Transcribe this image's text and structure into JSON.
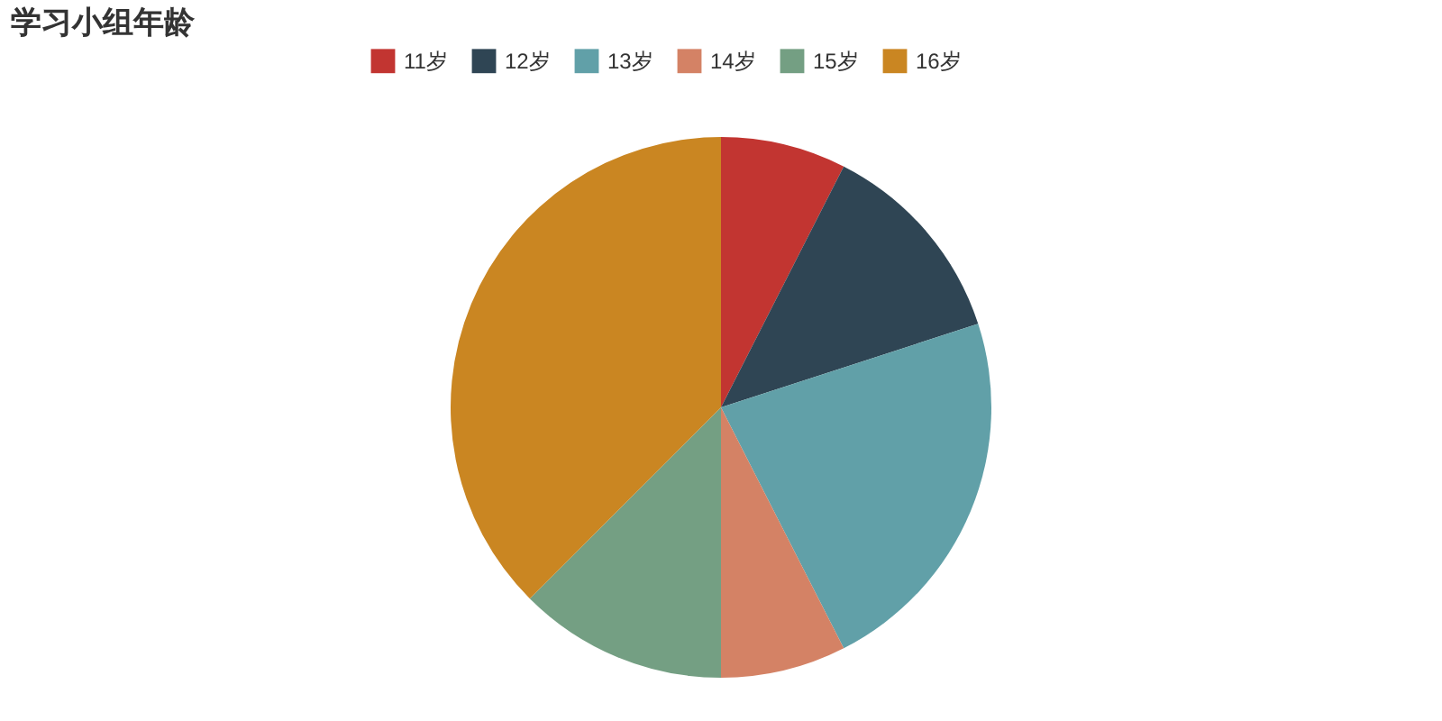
{
  "chart_data": {
    "type": "pie",
    "title": "学习小组年龄",
    "categories": [
      "11岁",
      "12岁",
      "13岁",
      "14岁",
      "15岁",
      "16岁"
    ],
    "values": [
      7.5,
      12.5,
      22.5,
      7.5,
      12.5,
      37.5
    ],
    "colors": [
      "#c23531",
      "#2f4554",
      "#61a0a8",
      "#d48265",
      "#749f83",
      "#ca8622"
    ],
    "legend": "top"
  }
}
